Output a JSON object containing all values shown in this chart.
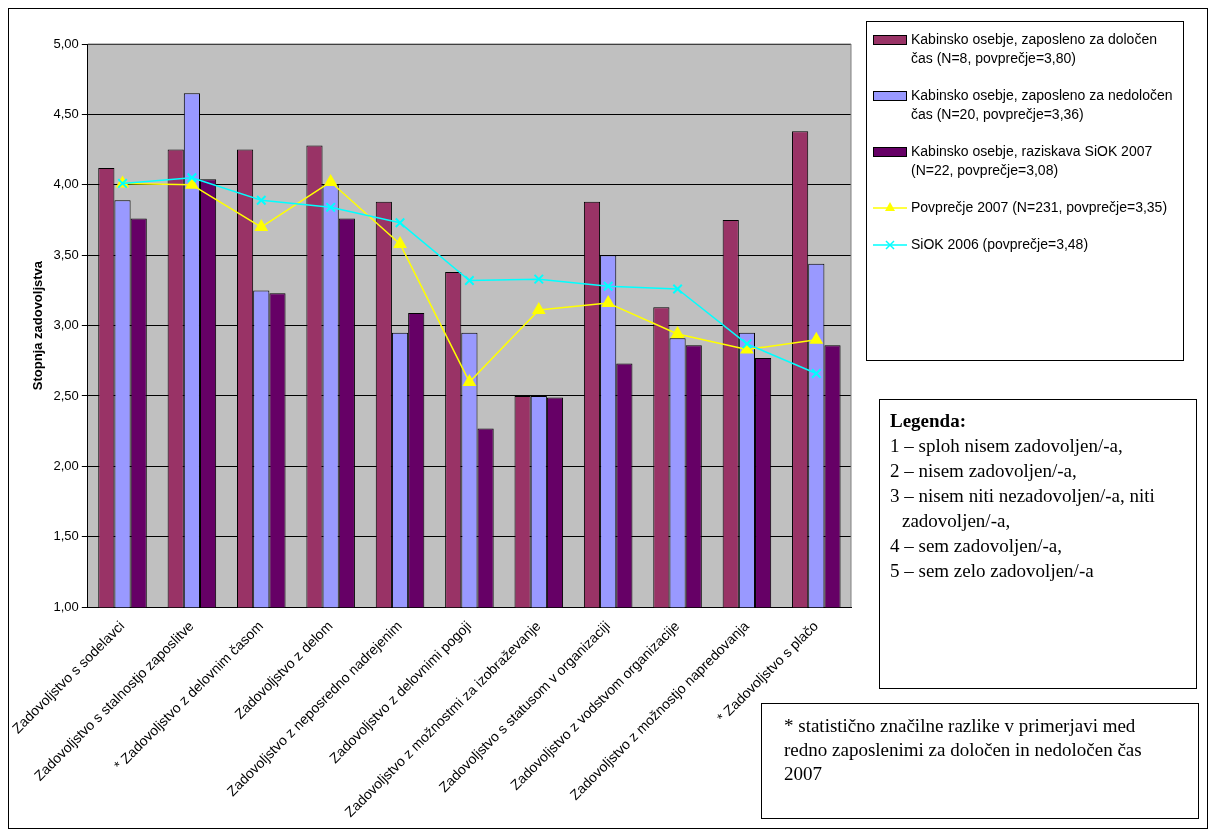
{
  "chart_data": {
    "type": "bar",
    "ylabel": "Stopnja zadovoljstva",
    "categories": [
      "Zadovoljstvo s sodelavci",
      "Zadovoljstvo s stalnostjo zaposlitve",
      "* Zadovoljstvo z delovnim časom",
      "Zadovoljstvo z delom",
      "Zadovoljstvo z neposredno nadrejenim",
      "Zadovoljstvo z delovnimi pogoji",
      "Zadovoljstvo z možnostmi za izobraževanje",
      "Zadovoljstvo s statusom v organizaciji",
      "Zadovoljstvo z vodstvom organizacije",
      "Zadovoljstvo z možnostjo napredovanja",
      "* Zadovoljstvo s plačo"
    ],
    "series": [
      {
        "name": "Kabinsko osebje, zaposleno za določen čas (N=8, povprečje=3,80)",
        "color": "#993366",
        "values": [
          4.12,
          4.25,
          4.25,
          4.28,
          3.88,
          3.38,
          2.5,
          3.88,
          3.13,
          3.75,
          4.38
        ]
      },
      {
        "name": "Kabinsko osebje, zaposleno za nedoločen čas (N=20, povprečje=3,36)",
        "color": "#9999ff",
        "values": [
          3.89,
          4.65,
          3.25,
          4.0,
          2.95,
          2.95,
          2.5,
          3.5,
          2.91,
          2.95,
          3.44
        ]
      },
      {
        "name": "Kabinsko osebje, raziskava SiOK 2007 (N=22, povprečje=3,08)",
        "color": "#660066",
        "values": [
          3.76,
          4.04,
          3.23,
          3.76,
          3.09,
          2.27,
          2.49,
          2.73,
          2.86,
          2.77,
          2.86
        ]
      },
      {
        "name": "Povprečje 2007 (N=231, povprečje=3,35)",
        "type": "line",
        "color": "#ffff00",
        "marker": "triangle",
        "values": [
          4.01,
          4.0,
          3.7,
          4.02,
          3.58,
          2.6,
          3.11,
          3.16,
          2.94,
          2.83,
          2.9
        ]
      },
      {
        "name": "SiOK 2006 (povprečje=3,48)",
        "type": "line",
        "color": "#00ffff",
        "marker": "cross",
        "values": [
          4.01,
          4.05,
          3.89,
          3.84,
          3.73,
          3.32,
          3.33,
          3.28,
          3.26,
          2.87,
          2.66
        ]
      }
    ],
    "ylim": [
      1,
      5
    ],
    "yticks": [
      {
        "value": 1,
        "label": "1,00"
      },
      {
        "value": 1.5,
        "label": "1,50"
      },
      {
        "value": 2,
        "label": "2,00"
      },
      {
        "value": 2.5,
        "label": "2,50"
      },
      {
        "value": 3,
        "label": "3,00"
      },
      {
        "value": 3.5,
        "label": "3,50"
      },
      {
        "value": 4,
        "label": "4,00"
      },
      {
        "value": 4.5,
        "label": "4,50"
      },
      {
        "value": 5,
        "label": "5,00"
      }
    ],
    "grid": "y",
    "legend": "right",
    "annotations": [
      "Legenda:",
      "1 – sploh nisem zadovoljen/-a,",
      "2 – nisem zadovoljen/-a,",
      "3 – nisem niti nezadovoljen/-a, niti zadovoljen/-a,",
      "4 – sem zadovoljen/-a,",
      "5 – sem zelo zadovoljen/-a",
      "* statistično značilne razlike v primerjavi med redno zaposlenimi za določen in nedoločen čas 2007"
    ]
  }
}
